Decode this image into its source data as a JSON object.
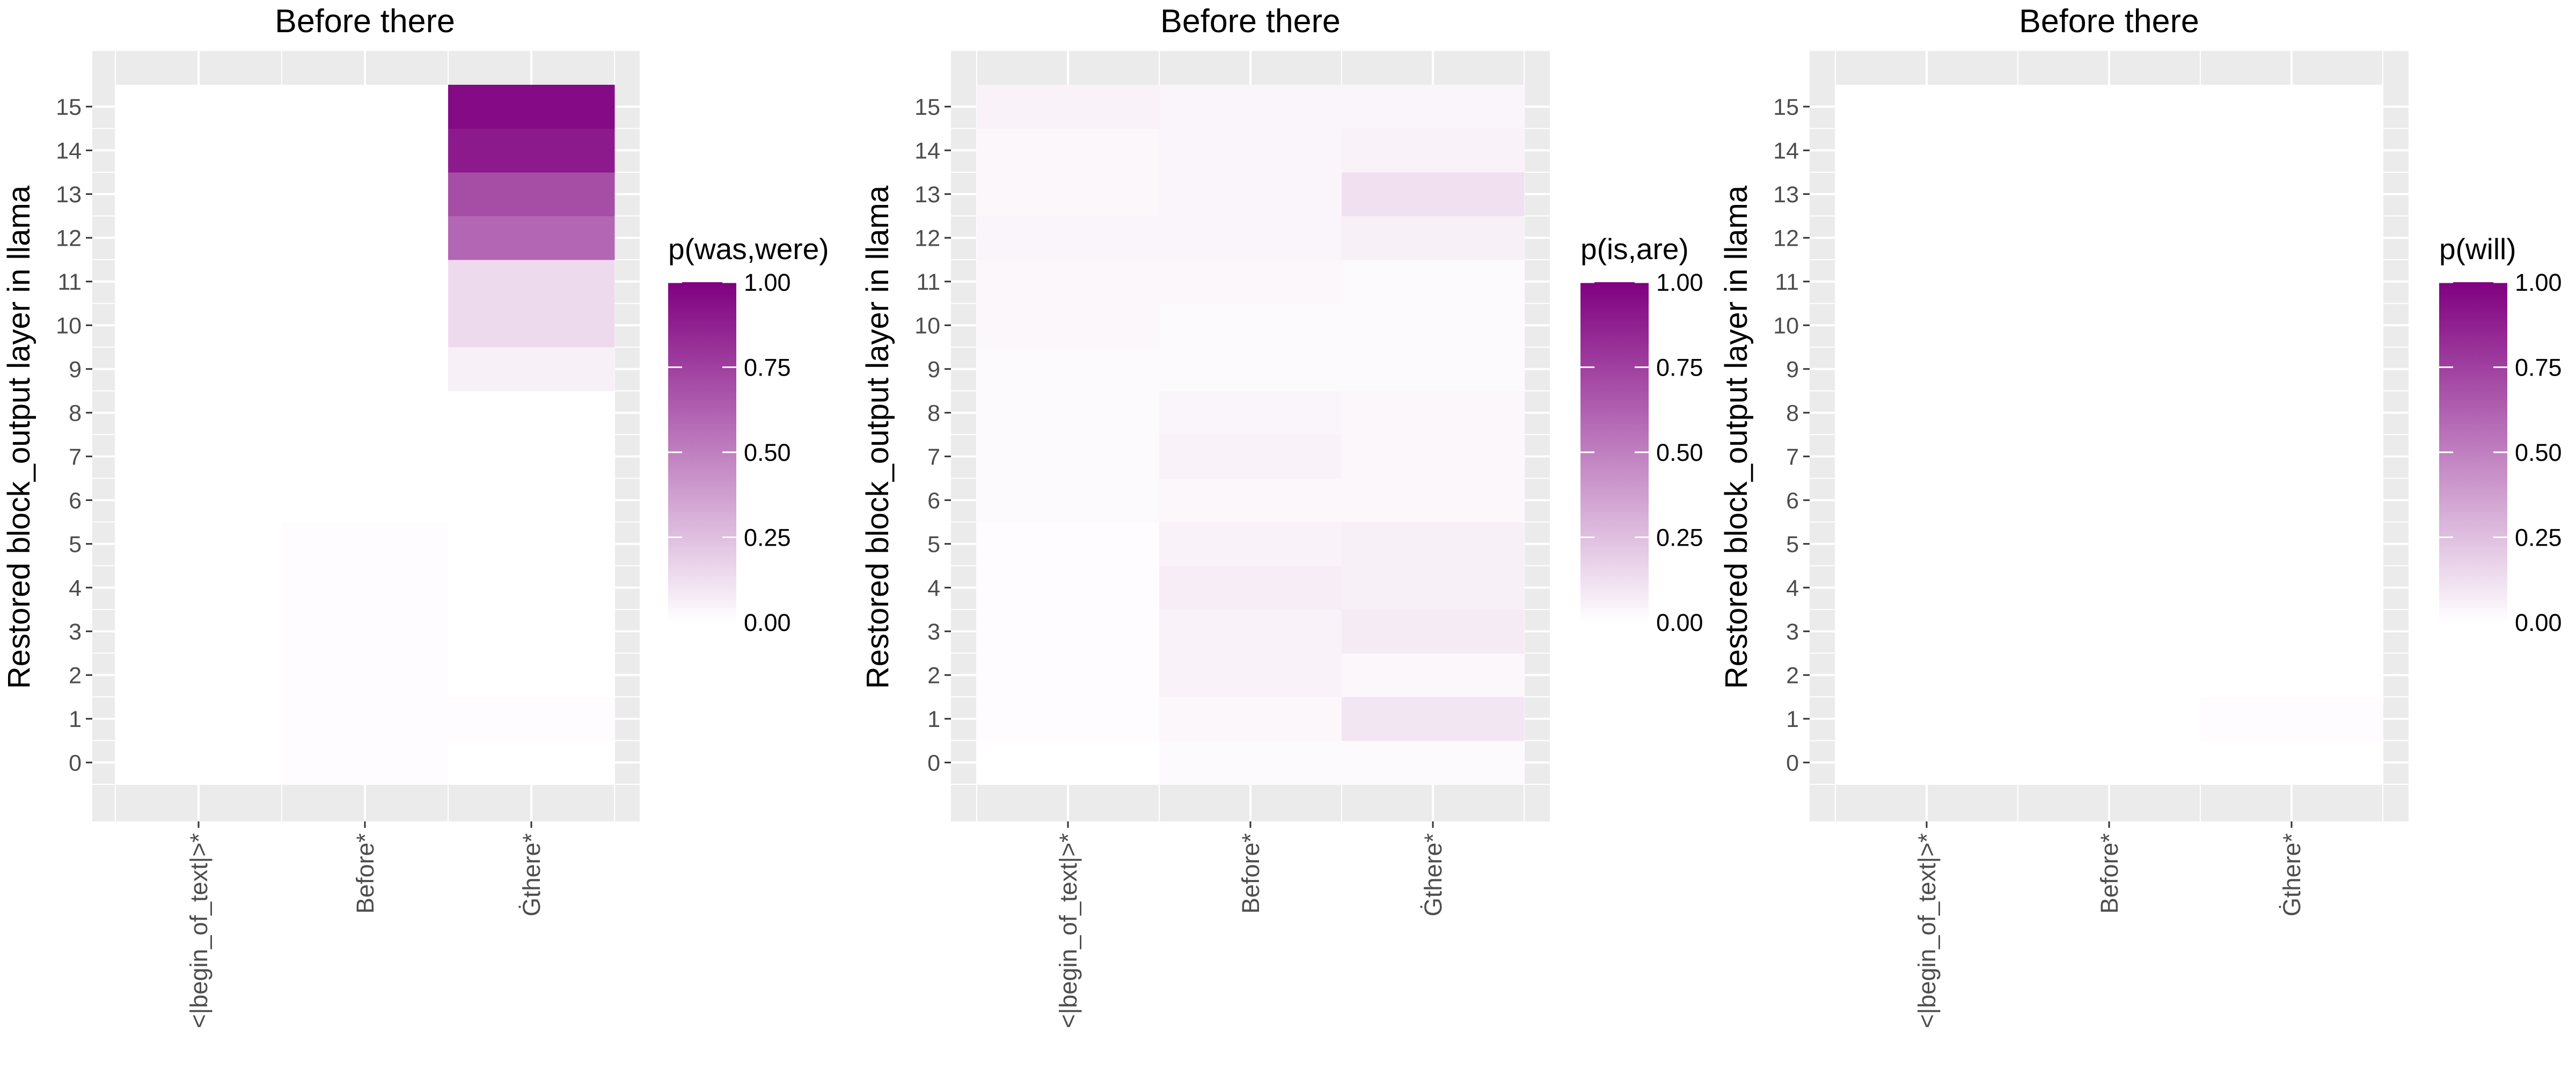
{
  "colors": {
    "low": "#ffffff",
    "high": "#800080",
    "panel_bg": "#ebebeb",
    "grid": "#ffffff"
  },
  "chart_data": [
    {
      "type": "heatmap",
      "title": "Before there",
      "ylabel": "Restored block_output layer in llama",
      "xlabel": "",
      "categories": [
        "<|begin_of_text|>*",
        "Before*",
        "Ġthere*"
      ],
      "y": [
        0,
        1,
        2,
        3,
        4,
        5,
        6,
        7,
        8,
        9,
        10,
        11,
        12,
        13,
        14,
        15
      ],
      "values": [
        [
          0.0,
          0.01,
          0.0
        ],
        [
          0.0,
          0.01,
          0.01
        ],
        [
          0.0,
          0.01,
          0.0
        ],
        [
          0.0,
          0.01,
          0.0
        ],
        [
          0.0,
          0.01,
          0.0
        ],
        [
          0.0,
          0.01,
          0.0
        ],
        [
          0.0,
          0.0,
          0.0
        ],
        [
          0.0,
          0.0,
          0.0
        ],
        [
          0.0,
          0.0,
          0.0
        ],
        [
          0.0,
          0.0,
          0.06
        ],
        [
          0.0,
          0.0,
          0.14
        ],
        [
          0.0,
          0.0,
          0.14
        ],
        [
          0.0,
          0.0,
          0.6
        ],
        [
          0.0,
          0.0,
          0.7
        ],
        [
          0.0,
          0.0,
          0.9
        ],
        [
          0.0,
          0.0,
          0.96
        ]
      ],
      "legend": {
        "title": "p(was,were)",
        "ticks": [
          "1.00",
          "0.75",
          "0.50",
          "0.25",
          "0.00"
        ],
        "range": [
          0,
          1
        ]
      },
      "grid": true
    },
    {
      "type": "heatmap",
      "title": "Before there",
      "ylabel": "Restored block_output layer in llama",
      "xlabel": "",
      "categories": [
        "<|begin_of_text|>*",
        "Before*",
        "Ġthere*"
      ],
      "y": [
        0,
        1,
        2,
        3,
        4,
        5,
        6,
        7,
        8,
        9,
        10,
        11,
        12,
        13,
        14,
        15
      ],
      "values": [
        [
          0.0,
          0.02,
          0.02
        ],
        [
          0.01,
          0.03,
          0.1
        ],
        [
          0.01,
          0.05,
          0.03
        ],
        [
          0.01,
          0.05,
          0.08
        ],
        [
          0.01,
          0.07,
          0.06
        ],
        [
          0.01,
          0.05,
          0.06
        ],
        [
          0.02,
          0.03,
          0.03
        ],
        [
          0.02,
          0.05,
          0.03
        ],
        [
          0.02,
          0.04,
          0.03
        ],
        [
          0.02,
          0.02,
          0.02
        ],
        [
          0.03,
          0.02,
          0.02
        ],
        [
          0.03,
          0.03,
          0.02
        ],
        [
          0.04,
          0.04,
          0.06
        ],
        [
          0.03,
          0.04,
          0.12
        ],
        [
          0.03,
          0.04,
          0.05
        ],
        [
          0.05,
          0.04,
          0.04
        ]
      ],
      "legend": {
        "title": "p(is,are)",
        "ticks": [
          "1.00",
          "0.75",
          "0.50",
          "0.25",
          "0.00"
        ],
        "range": [
          0,
          1
        ]
      },
      "grid": true
    },
    {
      "type": "heatmap",
      "title": "Before there",
      "ylabel": "Restored block_output layer in llama",
      "xlabel": "",
      "categories": [
        "<|begin_of_text|>*",
        "Before*",
        "Ġthere*"
      ],
      "y": [
        0,
        1,
        2,
        3,
        4,
        5,
        6,
        7,
        8,
        9,
        10,
        11,
        12,
        13,
        14,
        15
      ],
      "values": [
        [
          0.0,
          0.0,
          0.0
        ],
        [
          0.0,
          0.0,
          0.01
        ],
        [
          0.0,
          0.0,
          0.0
        ],
        [
          0.0,
          0.0,
          0.0
        ],
        [
          0.0,
          0.0,
          0.0
        ],
        [
          0.0,
          0.0,
          0.0
        ],
        [
          0.0,
          0.0,
          0.0
        ],
        [
          0.0,
          0.0,
          0.0
        ],
        [
          0.0,
          0.0,
          0.0
        ],
        [
          0.0,
          0.0,
          0.0
        ],
        [
          0.0,
          0.0,
          0.0
        ],
        [
          0.0,
          0.0,
          0.0
        ],
        [
          0.0,
          0.0,
          0.0
        ],
        [
          0.0,
          0.0,
          0.0
        ],
        [
          0.0,
          0.0,
          0.0
        ],
        [
          0.0,
          0.0,
          0.0
        ]
      ],
      "legend": {
        "title": "p(will)",
        "ticks": [
          "1.00",
          "0.75",
          "0.50",
          "0.25",
          "0.00"
        ],
        "range": [
          0,
          1
        ]
      },
      "grid": true
    }
  ]
}
